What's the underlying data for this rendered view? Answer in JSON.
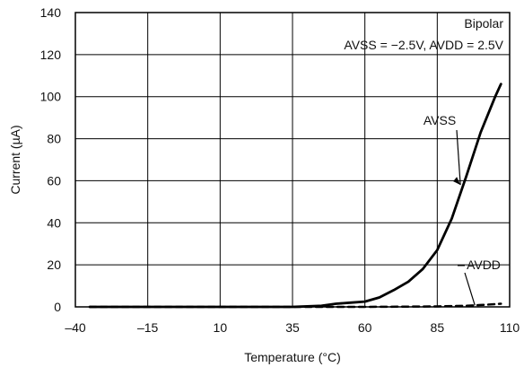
{
  "chart_data": {
    "type": "line",
    "xlabel": "Temperature (°C)",
    "ylabel": "Current (µA)",
    "xlim": [
      -40,
      110
    ],
    "ylim": [
      0,
      140
    ],
    "x_ticks": [
      -40,
      -15,
      10,
      35,
      60,
      85,
      110
    ],
    "y_ticks": [
      0,
      20,
      40,
      60,
      80,
      100,
      120,
      140
    ],
    "grid": true,
    "annotations": [
      "Bipolar",
      "AVSS = −2.5V, AVDD = 2.5V"
    ],
    "series": [
      {
        "name": "AVSS",
        "style": "solid",
        "x": [
          -35,
          35,
          45,
          50,
          55,
          60,
          65,
          70,
          75,
          80,
          85,
          90,
          95,
          100,
          105,
          107
        ],
        "y": [
          0,
          0,
          0.5,
          1.5,
          2.0,
          2.5,
          4.5,
          8.0,
          12.0,
          18.0,
          27.0,
          42.0,
          62.0,
          83.0,
          100.0,
          106.0
        ]
      },
      {
        "name": "AVDD",
        "style": "dashed",
        "x": [
          -35,
          60,
          85,
          95,
          100,
          105,
          107
        ],
        "y": [
          0,
          0,
          0.2,
          0.5,
          0.9,
          1.3,
          1.5
        ]
      }
    ]
  }
}
